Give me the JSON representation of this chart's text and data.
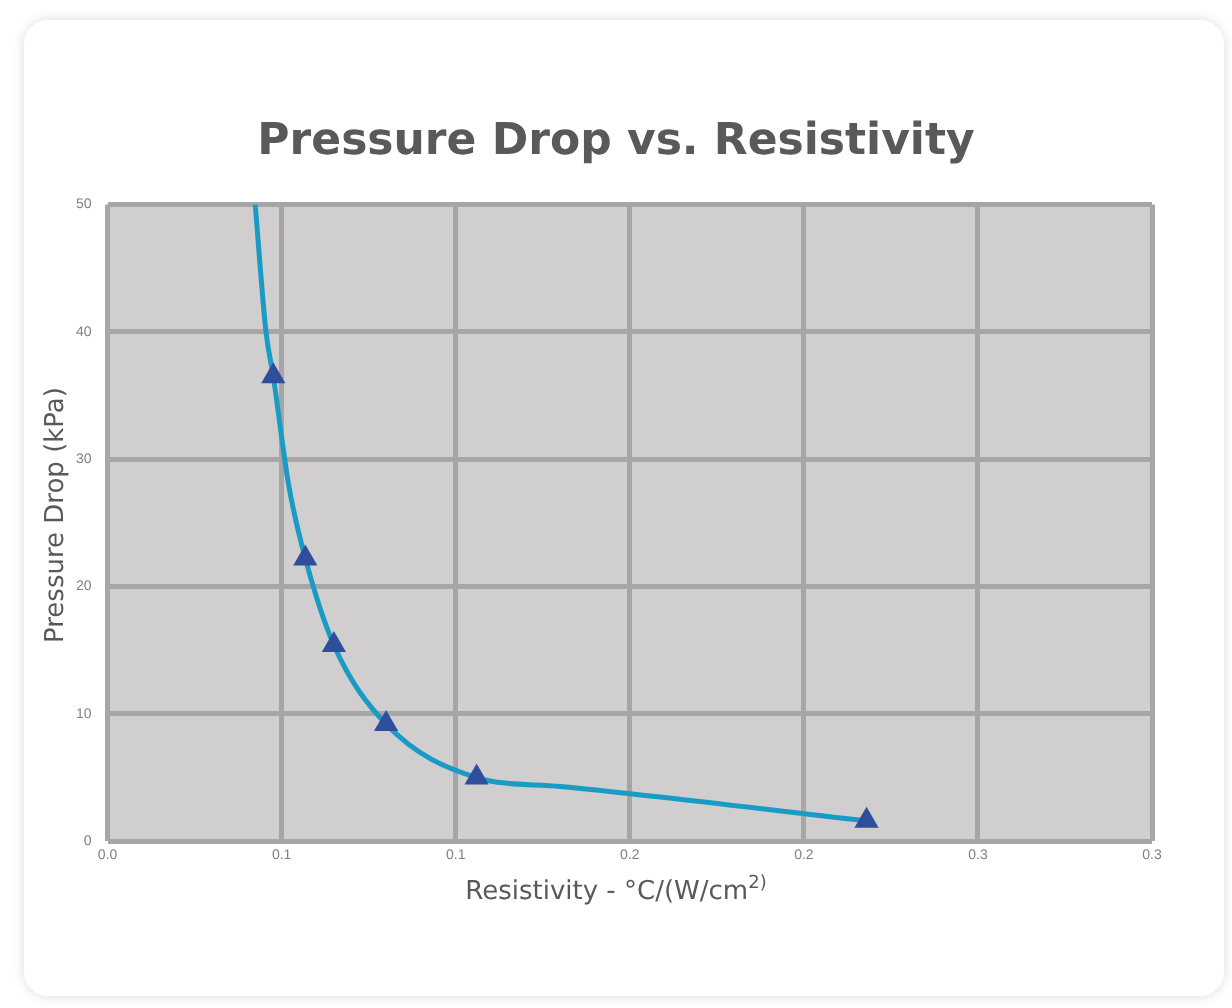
{
  "chart_data": {
    "type": "scatter",
    "title": "Pressure Drop vs. Resistivity",
    "xlabel": "Resistivity - °C/(W/cm$^{2)}$",
    "ylabel": "Pressure Drop (kPa)",
    "series": [
      {
        "type": "line",
        "color": "#1a9bc4",
        "marker": "none",
        "x": [
          0.0424,
          0.0455,
          0.0476,
          0.052,
          0.0568,
          0.065,
          0.08,
          0.106,
          0.13,
          0.218
        ],
        "values": [
          50,
          40,
          36.5,
          28,
          22.2,
          15.4,
          9.2,
          5.0,
          4.3,
          1.6
        ]
      },
      {
        "type": "scatter",
        "color": "#2f4e9b",
        "marker": "triangle",
        "x": [
          0.0476,
          0.0568,
          0.065,
          0.08,
          0.106,
          0.218
        ],
        "values": [
          36.5,
          22.2,
          15.4,
          9.2,
          5.0,
          1.6
        ]
      }
    ],
    "xlim": [
      0,
      0.3
    ],
    "xticks": [
      {
        "value": 0,
        "label": "0.0"
      },
      {
        "value": 0.05,
        "label": "0.1"
      },
      {
        "value": 0.1,
        "label": "0.1"
      },
      {
        "value": 0.15,
        "label": "0.2"
      },
      {
        "value": 0.2,
        "label": "0.2"
      },
      {
        "value": 0.25,
        "label": "0.3"
      },
      {
        "value": 0.3,
        "label": "0.3"
      }
    ],
    "ylim": [
      0,
      50
    ],
    "yticks": [
      0,
      10,
      20,
      30,
      40,
      50
    ],
    "grid": true,
    "legend": false
  }
}
